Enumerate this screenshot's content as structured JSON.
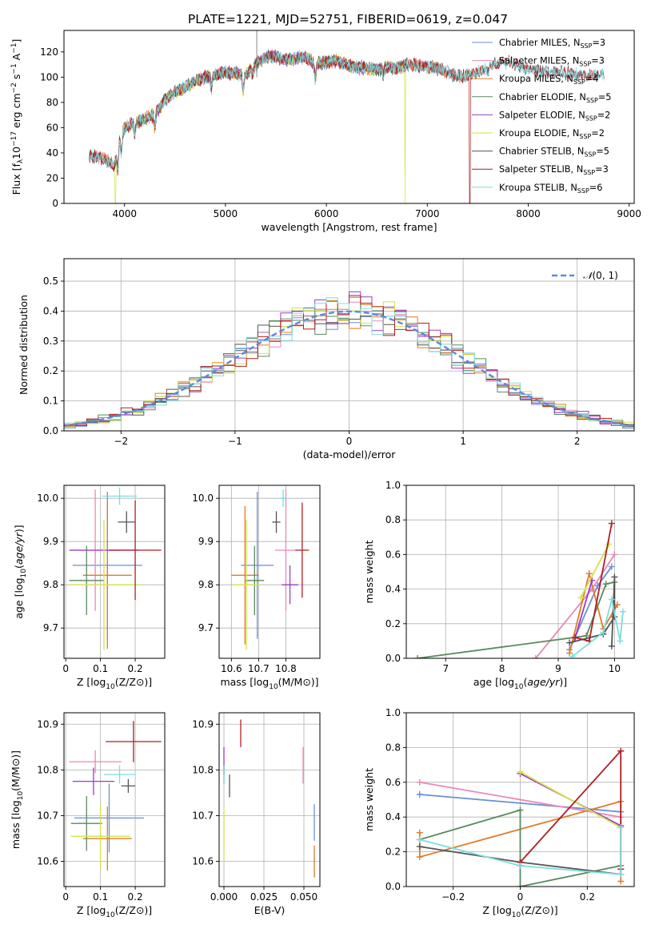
{
  "figure_title": "PLATE=1221, MJD=52751, FIBERID=0619, z=0.047",
  "colors": {
    "Chabrier MILES": "#6a8fd6",
    "Salpeter MILES": "#e889b8",
    "Kroupa MILES": "#e07b28",
    "Chabrier ELODIE": "#5a8a60",
    "Salpeter ELODIE": "#9c3bc4",
    "Kroupa ELODIE": "#d4e24a",
    "Chabrier STELIB": "#555555",
    "Salpeter STELIB": "#b01e22",
    "Kroupa STELIB": "#7fdcdc",
    "normal_curve": "#5b8bd8",
    "grid": "#b0b0b0"
  },
  "chart_data": [
    {
      "id": "spectrum",
      "type": "line",
      "xlabel": "wavelength [Angstrom, rest frame]",
      "ylabel": "Flux [f_λ10^-17 erg cm^-2 s^-1 A^-1]",
      "xlim": [
        3400,
        9050
      ],
      "ylim": [
        0,
        137
      ],
      "xticks": [
        4000,
        5000,
        6000,
        7000,
        8000,
        9000
      ],
      "yticks": [
        0,
        20,
        40,
        60,
        80,
        100,
        120
      ],
      "grid": false,
      "legend_placement": "right",
      "legend": [
        {
          "name": "Chabrier MILES",
          "nssp": "3"
        },
        {
          "name": "Salpeter MILES",
          "nssp": "3"
        },
        {
          "name": "Kroupa MILES",
          "nssp": "4"
        },
        {
          "name": "Chabrier ELODIE",
          "nssp": "5"
        },
        {
          "name": "Salpeter ELODIE",
          "nssp": "2"
        },
        {
          "name": "Kroupa ELODIE",
          "nssp": "2"
        },
        {
          "name": "Chabrier STELIB",
          "nssp": "5"
        },
        {
          "name": "Salpeter STELIB",
          "nssp": "3"
        },
        {
          "name": "Kroupa STELIB",
          "nssp": "6"
        }
      ],
      "continuum_points": [
        [
          3650,
          38
        ],
        [
          3800,
          35
        ],
        [
          3900,
          30
        ],
        [
          3950,
          50
        ],
        [
          4000,
          60
        ],
        [
          4100,
          64
        ],
        [
          4200,
          67
        ],
        [
          4300,
          70
        ],
        [
          4400,
          82
        ],
        [
          4500,
          88
        ],
        [
          4600,
          92
        ],
        [
          4700,
          97
        ],
        [
          4800,
          100
        ],
        [
          4900,
          102
        ],
        [
          5000,
          104
        ],
        [
          5100,
          103
        ],
        [
          5200,
          102
        ],
        [
          5300,
          110
        ],
        [
          5400,
          116
        ],
        [
          5500,
          116
        ],
        [
          5600,
          114
        ],
        [
          5700,
          115
        ],
        [
          5800,
          116
        ],
        [
          5900,
          110
        ],
        [
          6000,
          112
        ],
        [
          6100,
          113
        ],
        [
          6200,
          110
        ],
        [
          6300,
          108
        ],
        [
          6400,
          107
        ],
        [
          6500,
          106
        ],
        [
          6600,
          108
        ],
        [
          6700,
          107
        ],
        [
          6800,
          110
        ],
        [
          6900,
          109
        ],
        [
          7000,
          108
        ],
        [
          7100,
          107
        ],
        [
          7200,
          104
        ],
        [
          7300,
          100
        ],
        [
          7400,
          102
        ],
        [
          7500,
          104
        ],
        [
          7700,
          111
        ],
        [
          7800,
          112
        ],
        [
          8000,
          106
        ],
        [
          8200,
          104
        ],
        [
          8400,
          103
        ],
        [
          8600,
          102
        ],
        [
          8750,
          101
        ]
      ],
      "dropouts": [
        {
          "series": "Kroupa ELODIE",
          "x": 3910
        },
        {
          "series": "Kroupa ELODIE",
          "x": 6780
        },
        {
          "series": "Salpeter STELIB",
          "x": 7420
        }
      ],
      "extents": {
        "Chabrier MILES": [
          3650,
          7420
        ],
        "Salpeter MILES": [
          3650,
          7420
        ],
        "Kroupa MILES": [
          3650,
          7420
        ],
        "Chabrier ELODIE": [
          3900,
          6800
        ],
        "Salpeter ELODIE": [
          3900,
          6800
        ],
        "Kroupa ELODIE": [
          3900,
          6800
        ],
        "Chabrier STELIB": [
          3650,
          8750
        ],
        "Salpeter STELIB": [
          3650,
          8750
        ],
        "Kroupa STELIB": [
          3650,
          8750
        ]
      }
    },
    {
      "id": "residuals",
      "type": "histogram",
      "xlabel": "(data-model)/error",
      "ylabel": "Normed distribution",
      "xlim": [
        -2.5,
        2.5
      ],
      "ylim": [
        0,
        0.575
      ],
      "xticks": [
        -2,
        -1,
        0,
        1,
        2
      ],
      "yticks": [
        0.0,
        0.1,
        0.2,
        0.3,
        0.4,
        0.5
      ],
      "grid": true,
      "legend_placement": "top-right",
      "legend": [
        "N(0,1)"
      ],
      "bin_width": 0.1,
      "reference_curve": "standard normal"
    },
    {
      "id": "age-vs-Z",
      "type": "errorbar",
      "xlabel": "Z [log10(Z/Z⊙)]",
      "ylabel": "age  [log10(age/yr)]",
      "xlim": [
        -0.005,
        0.285
      ],
      "ylim": [
        9.63,
        10.03
      ],
      "xticks": [
        0.0,
        0.1,
        0.2
      ],
      "yticks": [
        9.7,
        9.8,
        9.9,
        10.0
      ],
      "grid": true,
      "points": [
        {
          "series": "Chabrier MILES",
          "x": 0.12,
          "xerr": 0.1,
          "y": 9.845,
          "yerr": 0.17
        },
        {
          "series": "Salpeter MILES",
          "x": 0.085,
          "xerr": 0.07,
          "y": 9.88,
          "yerr": 0.14
        },
        {
          "series": "Kroupa MILES",
          "x": 0.12,
          "xerr": 0.07,
          "y": 9.822,
          "yerr": 0.17
        },
        {
          "series": "Chabrier ELODIE",
          "x": 0.06,
          "xerr": 0.05,
          "y": 9.81,
          "yerr": 0.08
        },
        {
          "series": "Salpeter ELODIE",
          "x": 0.11,
          "xerr": 0.1,
          "y": 9.88,
          "yerr": 0.0
        },
        {
          "series": "Kroupa ELODIE",
          "x": 0.11,
          "xerr": 0.1,
          "y": 9.8,
          "yerr": 0.15
        },
        {
          "series": "Chabrier STELIB",
          "x": 0.175,
          "xerr": 0.025,
          "y": 9.945,
          "yerr": 0.025
        },
        {
          "series": "Salpeter STELIB",
          "x": 0.2,
          "xerr": 0.075,
          "y": 9.88,
          "yerr": 0.115
        },
        {
          "series": "Kroupa STELIB",
          "x": 0.155,
          "xerr": 0.05,
          "y": 10.005,
          "yerr": 0.02
        }
      ]
    },
    {
      "id": "age-vs-mass",
      "type": "errorbar",
      "xlabel": "mass [log10(M/M⊙)]",
      "ylabel": "",
      "xlim": [
        10.555,
        10.925
      ],
      "ylim": [
        9.63,
        10.03
      ],
      "xticks": [
        10.6,
        10.7,
        10.8
      ],
      "yticks": [
        9.7,
        9.8,
        9.9,
        10.0
      ],
      "grid": true,
      "points": [
        {
          "series": "Chabrier MILES",
          "x": 10.695,
          "xerr": 0.06,
          "y": 9.845,
          "yerr": 0.17
        },
        {
          "series": "Salpeter MILES",
          "x": 10.8,
          "xerr": 0.04,
          "y": 9.88,
          "yerr": 0.14
        },
        {
          "series": "Kroupa MILES",
          "x": 10.65,
          "xerr": 0.05,
          "y": 9.822,
          "yerr": 0.16
        },
        {
          "series": "Chabrier ELODIE",
          "x": 10.685,
          "xerr": 0.035,
          "y": 9.81,
          "yerr": 0.08
        },
        {
          "series": "Salpeter ELODIE",
          "x": 10.815,
          "xerr": 0.03,
          "y": 9.8,
          "yerr": 0.045
        },
        {
          "series": "Kroupa ELODIE",
          "x": 10.655,
          "xerr": 0.05,
          "y": 9.8,
          "yerr": 0.15
        },
        {
          "series": "Chabrier STELIB",
          "x": 10.765,
          "xerr": 0.015,
          "y": 9.945,
          "yerr": 0.025
        },
        {
          "series": "Salpeter STELIB",
          "x": 10.86,
          "xerr": 0.025,
          "y": 9.88,
          "yerr": 0.11
        },
        {
          "series": "Kroupa STELIB",
          "x": 10.79,
          "xerr": 0.015,
          "y": 10.0,
          "yerr": 0.02
        }
      ]
    },
    {
      "id": "weight-vs-age",
      "type": "line",
      "xlabel": "age  [log10(age/yr)]",
      "ylabel": "mass weight",
      "xlim": [
        6.3,
        10.35
      ],
      "ylim": [
        0.0,
        1.0
      ],
      "xticks": [
        7,
        8,
        9,
        10
      ],
      "yticks": [
        0.0,
        0.2,
        0.4,
        0.6,
        0.8,
        1.0
      ],
      "grid": true,
      "series": [
        {
          "name": "Chabrier MILES",
          "x": [
            9.2,
            9.7,
            9.95
          ],
          "y": [
            0.05,
            0.42,
            0.53
          ]
        },
        {
          "name": "Salpeter MILES",
          "x": [
            8.6,
            9.6,
            10.0
          ],
          "y": [
            0.0,
            0.4,
            0.6
          ]
        },
        {
          "name": "Kroupa MILES",
          "x": [
            9.2,
            9.55,
            9.8,
            10.05
          ],
          "y": [
            0.03,
            0.49,
            0.17,
            0.31
          ]
        },
        {
          "name": "Chabrier ELODIE",
          "x": [
            6.5,
            9.5,
            9.85,
            10.0
          ],
          "y": [
            0.0,
            0.13,
            0.43,
            0.44
          ]
        },
        {
          "name": "Salpeter ELODIE",
          "x": [
            9.3,
            9.6
          ],
          "y": [
            0.12,
            0.45
          ]
        },
        {
          "name": "Kroupa ELODIE",
          "x": [
            9.4,
            9.9
          ],
          "y": [
            0.35,
            0.66
          ]
        },
        {
          "name": "Chabrier STELIB",
          "x": [
            9.2,
            9.8,
            10.0,
            10.0,
            9.95
          ],
          "y": [
            0.09,
            0.14,
            0.24,
            0.47,
            0.07
          ]
        },
        {
          "name": "Salpeter STELIB",
          "x": [
            9.3,
            9.55,
            9.95
          ],
          "y": [
            0.12,
            0.1,
            0.78
          ]
        },
        {
          "name": "Kroupa STELIB",
          "x": [
            9.25,
            9.8,
            9.95,
            10.1,
            10.15
          ],
          "y": [
            0.01,
            0.15,
            0.34,
            0.1,
            0.27
          ]
        }
      ]
    },
    {
      "id": "mass-vs-Z",
      "type": "errorbar",
      "xlabel": "Z [log10(Z/Z⊙)]",
      "ylabel": "mass [log10(M/M⊙)]",
      "xlim": [
        -0.005,
        0.285
      ],
      "ylim": [
        10.545,
        10.925
      ],
      "xticks": [
        0.0,
        0.1,
        0.2
      ],
      "yticks": [
        10.6,
        10.7,
        10.8,
        10.9
      ],
      "grid": true,
      "points": [
        {
          "series": "Chabrier MILES",
          "x": 0.125,
          "xerr": 0.1,
          "y": 10.695,
          "yerr": 0.075
        },
        {
          "series": "Salpeter MILES",
          "x": 0.085,
          "xerr": 0.075,
          "y": 10.818,
          "yerr": 0.025
        },
        {
          "series": "Kroupa MILES",
          "x": 0.12,
          "xerr": 0.07,
          "y": 10.65,
          "yerr": 0.07
        },
        {
          "series": "Chabrier ELODIE",
          "x": 0.06,
          "xerr": 0.045,
          "y": 10.683,
          "yerr": 0.06
        },
        {
          "series": "Salpeter ELODIE",
          "x": 0.08,
          "xerr": 0.06,
          "y": 10.775,
          "yerr": 0.03
        },
        {
          "series": "Kroupa ELODIE",
          "x": 0.1,
          "xerr": 0.085,
          "y": 10.655,
          "yerr": 0.07
        },
        {
          "series": "Chabrier STELIB",
          "x": 0.18,
          "xerr": 0.02,
          "y": 10.765,
          "yerr": 0.015
        },
        {
          "series": "Salpeter STELIB",
          "x": 0.195,
          "xerr": 0.08,
          "y": 10.862,
          "yerr": 0.045
        },
        {
          "series": "Kroupa STELIB",
          "x": 0.155,
          "xerr": 0.045,
          "y": 10.79,
          "yerr": 0.02
        }
      ]
    },
    {
      "id": "mass-vs-ebv",
      "type": "errorbar",
      "xlabel": "E(B-V)",
      "ylabel": "",
      "xlim": [
        -0.003,
        0.06
      ],
      "ylim": [
        10.545,
        10.925
      ],
      "xticks": [
        0.0,
        0.025,
        0.05
      ],
      "xticklabels": [
        "0.000",
        "0.025",
        "0.050"
      ],
      "yticks": [
        10.6,
        10.7,
        10.8,
        10.9
      ],
      "grid": true,
      "points": [
        {
          "series": "Chabrier MILES",
          "x": 0.0565,
          "xerr": 0,
          "y": 10.685,
          "yerr": 0.04
        },
        {
          "series": "Salpeter MILES",
          "x": 0.0495,
          "xerr": 0,
          "y": 10.81,
          "yerr": 0.04
        },
        {
          "series": "Kroupa MILES",
          "x": 0.0565,
          "xerr": 0,
          "y": 10.6,
          "yerr": 0.035
        },
        {
          "series": "Chabrier ELODIE",
          "x": 0.0,
          "xerr": 0,
          "y": 10.79,
          "yerr": 0.02
        },
        {
          "series": "Salpeter ELODIE",
          "x": 0.0,
          "xerr": 0,
          "y": 10.82,
          "yerr": 0.03
        },
        {
          "series": "Kroupa ELODIE",
          "x": 0.0,
          "xerr": 0,
          "y": 10.66,
          "yerr": 0.06
        },
        {
          "series": "Chabrier STELIB",
          "x": 0.0035,
          "xerr": 0,
          "y": 10.765,
          "yerr": 0.025
        },
        {
          "series": "Salpeter STELIB",
          "x": 0.0105,
          "xerr": 0,
          "y": 10.88,
          "yerr": 0.03
        },
        {
          "series": "Kroupa STELIB",
          "x": 0.0,
          "xerr": 0,
          "y": 10.79,
          "yerr": 0.02
        }
      ]
    },
    {
      "id": "weight-vs-Z",
      "type": "line",
      "xlabel": "Z [log10(Z/Z⊙)]",
      "ylabel": "mass weight",
      "xlim": [
        -0.34,
        0.34
      ],
      "ylim": [
        0.0,
        1.0
      ],
      "xticks": [
        -0.2,
        0.0,
        0.2
      ],
      "yticks": [
        0.0,
        0.2,
        0.4,
        0.6,
        0.8,
        1.0
      ],
      "grid": true,
      "series": [
        {
          "name": "Chabrier MILES",
          "x": [
            -0.3,
            0.3
          ],
          "y": [
            0.53,
            0.43
          ]
        },
        {
          "name": "Salpeter MILES",
          "x": [
            -0.3,
            0.3
          ],
          "y": [
            0.6,
            0.4
          ]
        },
        {
          "name": "Kroupa MILES",
          "x": [
            -0.3,
            -0.3,
            0.3,
            0.3
          ],
          "y": [
            0.31,
            0.17,
            0.49,
            0.03
          ]
        },
        {
          "name": "Chabrier ELODIE",
          "x": [
            -0.3,
            0.0,
            0.0,
            0.3
          ],
          "y": [
            0.27,
            0.44,
            0.0,
            0.12
          ]
        },
        {
          "name": "Salpeter ELODIE",
          "x": [
            0.0,
            0.3
          ],
          "y": [
            0.65,
            0.35
          ]
        },
        {
          "name": "Kroupa ELODIE",
          "x": [
            0.0,
            0.3
          ],
          "y": [
            0.66,
            0.34
          ]
        },
        {
          "name": "Chabrier STELIB",
          "x": [
            -0.3,
            0.0,
            0.3,
            0.3
          ],
          "y": [
            0.23,
            0.14,
            0.07,
            0.1
          ]
        },
        {
          "name": "Salpeter STELIB",
          "x": [
            0.0,
            0.0,
            0.3,
            0.3
          ],
          "y": [
            0.12,
            0.14,
            0.78,
            0.1
          ]
        },
        {
          "name": "Kroupa STELIB",
          "x": [
            -0.3,
            0.0,
            0.3,
            0.3
          ],
          "y": [
            0.27,
            0.12,
            0.07,
            0.34
          ]
        }
      ]
    }
  ]
}
